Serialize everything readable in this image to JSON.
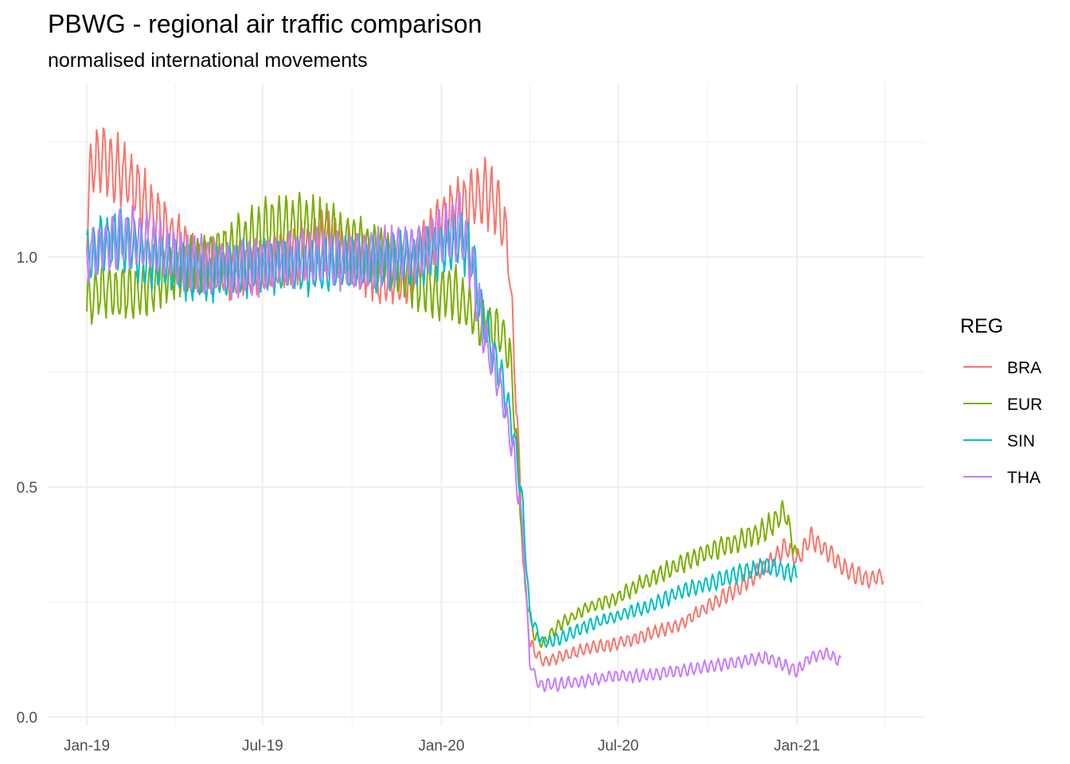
{
  "chart_data": {
    "type": "line",
    "title": "PBWG - regional air traffic comparison",
    "subtitle": "normalised international movements",
    "xlabel": "",
    "ylabel": "",
    "x_range": [
      "2018-12-01",
      "2021-04-30"
    ],
    "ylim": [
      0.0,
      1.3
    ],
    "x_ticks": [
      {
        "date": "2019-01-01",
        "label": "Jan-19"
      },
      {
        "date": "2019-07-01",
        "label": "Jul-19"
      },
      {
        "date": "2020-01-01",
        "label": "Jan-20"
      },
      {
        "date": "2020-07-01",
        "label": "Jul-20"
      },
      {
        "date": "2021-01-01",
        "label": "Jan-21"
      }
    ],
    "y_ticks": [
      {
        "value": 0.0,
        "label": "0.0"
      },
      {
        "value": 0.5,
        "label": "0.5"
      },
      {
        "value": 1.0,
        "label": "1.0"
      }
    ],
    "grid": true,
    "legend": {
      "title": "REG",
      "position": "right"
    },
    "series": [
      {
        "name": "BRA",
        "color": "#F8766D",
        "points": [
          [
            "2019-01-01",
            1.08
          ],
          [
            "2019-01-05",
            1.2
          ],
          [
            "2019-01-15",
            1.22
          ],
          [
            "2019-01-31",
            1.2
          ],
          [
            "2019-02-15",
            1.16
          ],
          [
            "2019-03-01",
            1.12
          ],
          [
            "2019-03-15",
            1.08
          ],
          [
            "2019-04-01",
            1.04
          ],
          [
            "2019-04-15",
            1.0
          ],
          [
            "2019-05-01",
            0.98
          ],
          [
            "2019-06-01",
            0.97
          ],
          [
            "2019-07-01",
            0.98
          ],
          [
            "2019-08-01",
            1.0
          ],
          [
            "2019-09-01",
            1.04
          ],
          [
            "2019-10-01",
            1.0
          ],
          [
            "2019-11-01",
            0.95
          ],
          [
            "2019-12-01",
            0.96
          ],
          [
            "2020-01-01",
            1.08
          ],
          [
            "2020-02-01",
            1.12
          ],
          [
            "2020-02-15",
            1.14
          ],
          [
            "2020-03-01",
            1.1
          ],
          [
            "2020-03-10",
            1.02
          ],
          [
            "2020-03-18",
            0.7
          ],
          [
            "2020-03-25",
            0.35
          ],
          [
            "2020-04-01",
            0.16
          ],
          [
            "2020-04-15",
            0.12
          ],
          [
            "2020-05-01",
            0.13
          ],
          [
            "2020-06-01",
            0.15
          ],
          [
            "2020-07-01",
            0.16
          ],
          [
            "2020-08-01",
            0.18
          ],
          [
            "2020-09-01",
            0.2
          ],
          [
            "2020-10-01",
            0.24
          ],
          [
            "2020-11-01",
            0.28
          ],
          [
            "2020-12-01",
            0.33
          ],
          [
            "2020-12-20",
            0.37
          ],
          [
            "2021-01-01",
            0.34
          ],
          [
            "2021-01-15",
            0.39
          ],
          [
            "2021-02-01",
            0.36
          ],
          [
            "2021-02-15",
            0.33
          ],
          [
            "2021-03-01",
            0.31
          ],
          [
            "2021-03-15",
            0.3
          ],
          [
            "2021-03-31",
            0.31
          ]
        ]
      },
      {
        "name": "EUR",
        "color": "#7CAE00",
        "points": [
          [
            "2019-01-01",
            0.9
          ],
          [
            "2019-01-15",
            0.93
          ],
          [
            "2019-02-01",
            0.92
          ],
          [
            "2019-02-15",
            0.92
          ],
          [
            "2019-03-01",
            0.93
          ],
          [
            "2019-04-01",
            0.97
          ],
          [
            "2019-05-01",
            0.99
          ],
          [
            "2019-06-01",
            1.02
          ],
          [
            "2019-07-01",
            1.06
          ],
          [
            "2019-08-01",
            1.07
          ],
          [
            "2019-09-01",
            1.06
          ],
          [
            "2019-10-01",
            1.03
          ],
          [
            "2019-11-01",
            1.0
          ],
          [
            "2019-12-01",
            0.95
          ],
          [
            "2020-01-01",
            0.92
          ],
          [
            "2020-01-15",
            0.92
          ],
          [
            "2020-02-01",
            0.88
          ],
          [
            "2020-02-15",
            0.85
          ],
          [
            "2020-03-01",
            0.84
          ],
          [
            "2020-03-12",
            0.78
          ],
          [
            "2020-03-20",
            0.55
          ],
          [
            "2020-03-27",
            0.28
          ],
          [
            "2020-04-05",
            0.18
          ],
          [
            "2020-04-15",
            0.16
          ],
          [
            "2020-05-01",
            0.2
          ],
          [
            "2020-06-01",
            0.24
          ],
          [
            "2020-07-01",
            0.26
          ],
          [
            "2020-08-01",
            0.3
          ],
          [
            "2020-09-01",
            0.33
          ],
          [
            "2020-10-01",
            0.36
          ],
          [
            "2020-11-01",
            0.38
          ],
          [
            "2020-12-01",
            0.41
          ],
          [
            "2020-12-20",
            0.45
          ],
          [
            "2021-01-01",
            0.34
          ]
        ]
      },
      {
        "name": "SIN",
        "color": "#00BFC4",
        "points": [
          [
            "2019-01-01",
            1.0
          ],
          [
            "2019-01-15",
            1.02
          ],
          [
            "2019-02-01",
            1.04
          ],
          [
            "2019-02-15",
            1.03
          ],
          [
            "2019-03-01",
            1.0
          ],
          [
            "2019-04-01",
            0.98
          ],
          [
            "2019-05-01",
            0.96
          ],
          [
            "2019-06-01",
            0.97
          ],
          [
            "2019-07-01",
            0.98
          ],
          [
            "2019-08-01",
            0.98
          ],
          [
            "2019-09-01",
            0.98
          ],
          [
            "2019-10-01",
            0.98
          ],
          [
            "2019-11-01",
            0.99
          ],
          [
            "2019-12-01",
            1.0
          ],
          [
            "2020-01-01",
            1.02
          ],
          [
            "2020-01-20",
            1.05
          ],
          [
            "2020-02-01",
            1.0
          ],
          [
            "2020-02-15",
            0.85
          ],
          [
            "2020-03-01",
            0.75
          ],
          [
            "2020-03-15",
            0.62
          ],
          [
            "2020-03-25",
            0.45
          ],
          [
            "2020-04-01",
            0.22
          ],
          [
            "2020-04-15",
            0.16
          ],
          [
            "2020-05-01",
            0.17
          ],
          [
            "2020-06-01",
            0.2
          ],
          [
            "2020-07-01",
            0.22
          ],
          [
            "2020-08-01",
            0.24
          ],
          [
            "2020-09-01",
            0.27
          ],
          [
            "2020-10-01",
            0.29
          ],
          [
            "2020-11-01",
            0.31
          ],
          [
            "2020-12-01",
            0.33
          ],
          [
            "2021-01-01",
            0.31
          ]
        ]
      },
      {
        "name": "THA",
        "color": "#C77CFF",
        "points": [
          [
            "2019-01-01",
            1.0
          ],
          [
            "2019-01-15",
            1.02
          ],
          [
            "2019-02-01",
            1.04
          ],
          [
            "2019-02-15",
            1.05
          ],
          [
            "2019-03-01",
            1.03
          ],
          [
            "2019-04-01",
            1.0
          ],
          [
            "2019-05-01",
            0.99
          ],
          [
            "2019-06-01",
            0.97
          ],
          [
            "2019-07-01",
            0.98
          ],
          [
            "2019-08-01",
            1.0
          ],
          [
            "2019-09-01",
            1.0
          ],
          [
            "2019-10-01",
            0.99
          ],
          [
            "2019-11-01",
            1.0
          ],
          [
            "2019-12-01",
            1.01
          ],
          [
            "2020-01-01",
            1.04
          ],
          [
            "2020-01-20",
            1.07
          ],
          [
            "2020-02-01",
            0.98
          ],
          [
            "2020-02-15",
            0.82
          ],
          [
            "2020-03-01",
            0.72
          ],
          [
            "2020-03-15",
            0.58
          ],
          [
            "2020-03-25",
            0.4
          ],
          [
            "2020-04-01",
            0.12
          ],
          [
            "2020-04-10",
            0.07
          ],
          [
            "2020-05-01",
            0.07
          ],
          [
            "2020-06-01",
            0.08
          ],
          [
            "2020-07-01",
            0.09
          ],
          [
            "2020-08-01",
            0.09
          ],
          [
            "2020-09-01",
            0.1
          ],
          [
            "2020-10-01",
            0.11
          ],
          [
            "2020-11-01",
            0.12
          ],
          [
            "2020-12-01",
            0.13
          ],
          [
            "2021-01-01",
            0.1
          ],
          [
            "2021-01-15",
            0.13
          ],
          [
            "2021-02-01",
            0.14
          ],
          [
            "2021-02-15",
            0.12
          ]
        ]
      }
    ]
  }
}
